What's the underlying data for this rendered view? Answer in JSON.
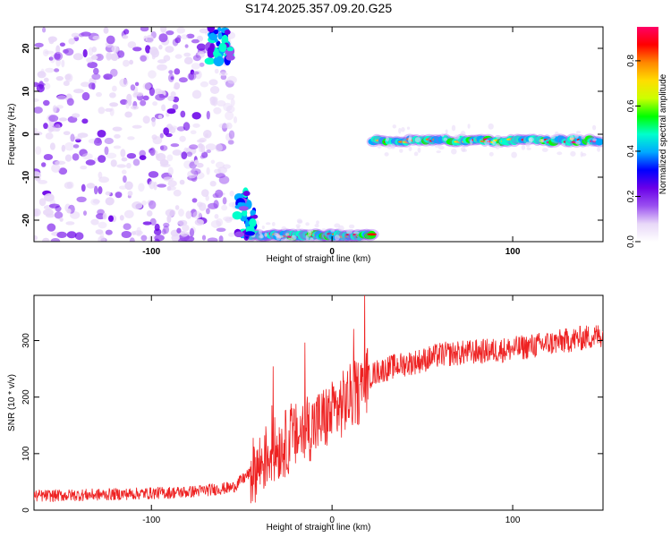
{
  "title": "S174.2025.357.09.20.G25",
  "chart_data": [
    {
      "type": "heatmap",
      "xlabel": "Height of straight line (km)",
      "ylabel": "Frequency (Hz)",
      "xlim": [
        -165,
        150
      ],
      "ylim": [
        -25,
        25
      ],
      "xticks": [
        -100,
        0,
        100
      ],
      "yticks": [
        -20,
        -10,
        0,
        10,
        20
      ],
      "colorbar": {
        "label": "Normalized spectral amplitude",
        "range": [
          0,
          0.95
        ],
        "ticks": [
          0.0,
          0.2,
          0.4,
          0.6,
          0.8
        ],
        "colors": [
          "#ffffff",
          "#e8d8f8",
          "#9a4ff0",
          "#6a00e8",
          "#0000ff",
          "#00aaff",
          "#00ffcc",
          "#00ff00",
          "#ccff00",
          "#ffdd00",
          "#ff8800",
          "#ff0000",
          "#ff0066"
        ]
      },
      "features": [
        {
          "name": "noise",
          "x_range": [
            -165,
            -53
          ],
          "y_range": [
            -25,
            25
          ],
          "level": 0.2
        },
        {
          "name": "tail-top",
          "x_range": [
            -68,
            -55
          ],
          "y_range": [
            17,
            25
          ],
          "level": 0.35
        },
        {
          "name": "branch-upper",
          "x_range": [
            23,
            148
          ],
          "y_center": -1.5,
          "level": 0.75
        },
        {
          "name": "branch-lower",
          "x_range": [
            -45,
            22
          ],
          "y_center": -23.5,
          "level": 0.75
        },
        {
          "name": "branch-mid",
          "x_range": [
            -53,
            -43
          ],
          "y_range": [
            -24,
            -13
          ],
          "level": 0.3
        }
      ]
    },
    {
      "type": "line",
      "xlabel": "Height of straight line (km)",
      "ylabel": "SNR (10 * v/v)",
      "xlim": [
        -165,
        150
      ],
      "ylim": [
        0,
        380
      ],
      "xticks": [
        -100,
        0,
        100
      ],
      "yticks": [
        0,
        100,
        200,
        300
      ],
      "color": "#ee2222",
      "x": [
        -165,
        -120,
        -80,
        -55,
        -40,
        -35,
        -25,
        -15,
        -10,
        0,
        10,
        15,
        20,
        25,
        35,
        50,
        60,
        80,
        100,
        120,
        140,
        150
      ],
      "y": [
        25,
        28,
        32,
        40,
        80,
        100,
        120,
        140,
        150,
        170,
        200,
        210,
        235,
        245,
        255,
        265,
        275,
        280,
        285,
        295,
        305,
        310
      ]
    }
  ]
}
